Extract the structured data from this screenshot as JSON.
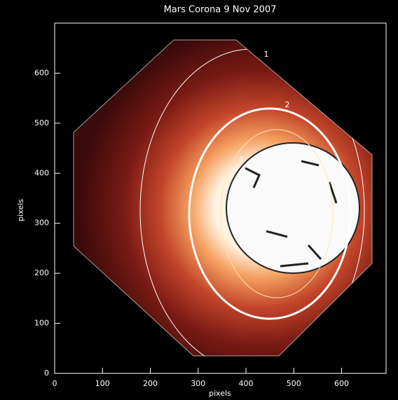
{
  "chart_data": {
    "type": "image",
    "title": "Mars Corona  9 Nov 2007",
    "xlabel": "pixels",
    "ylabel": "pixels",
    "xlim": [
      0,
      693
    ],
    "xticks": [
      0,
      100,
      200,
      300,
      400,
      500,
      600
    ],
    "ylim": [
      0,
      700
    ],
    "yticks": [
      0,
      100,
      200,
      300,
      400,
      500,
      600
    ],
    "contour_labels": [
      "1",
      "2",
      "3"
    ]
  }
}
